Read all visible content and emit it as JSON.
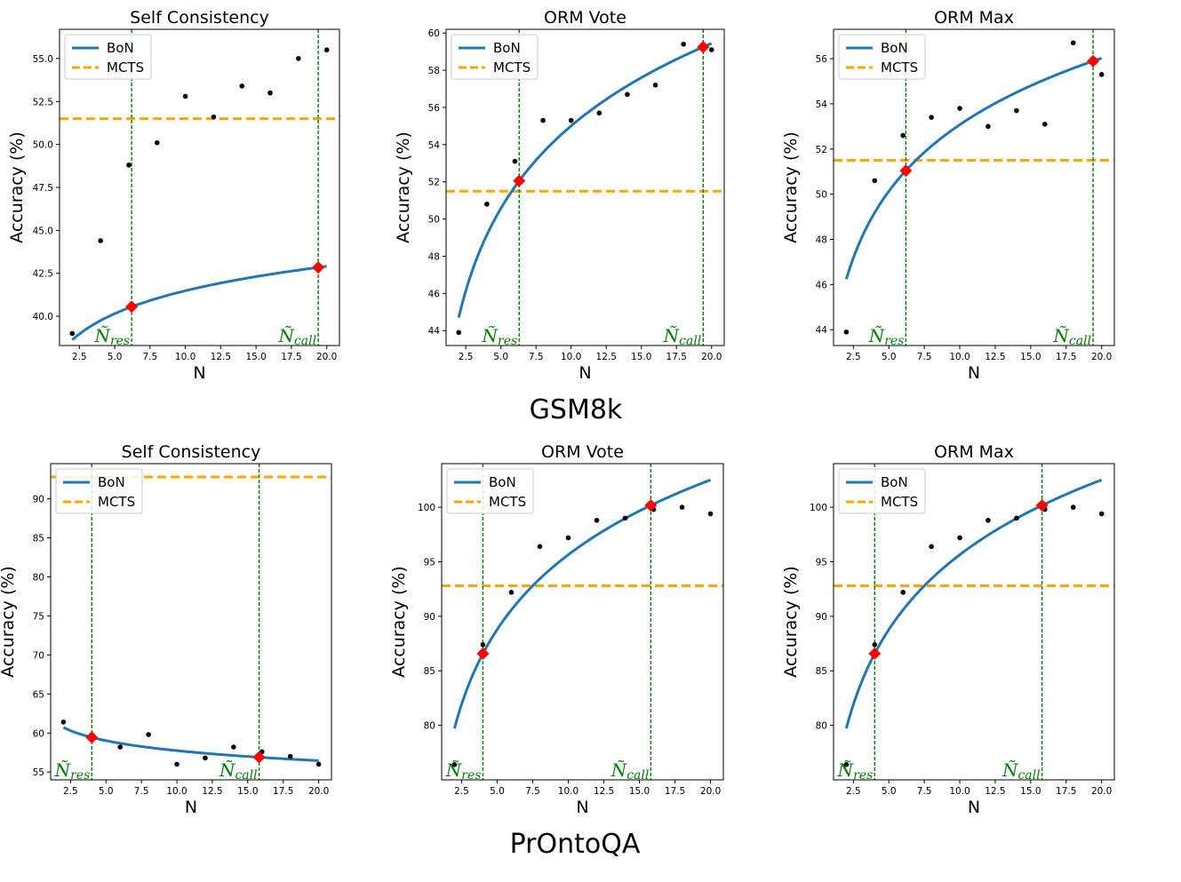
{
  "groups": [
    {
      "label": "GSM8k"
    },
    {
      "label": "PrOntoQA"
    }
  ],
  "legend": {
    "bon": "BoN",
    "mcts": "MCTS"
  },
  "annotations": {
    "n_res": "Ñ",
    "n_res_sub": "res",
    "n_call": "Ñ",
    "n_call_sub": "call"
  },
  "colors": {
    "bon": "#1f77b4",
    "mcts": "#ffa500",
    "vline": "#008000",
    "points": "#000000",
    "marker": "#ff0000"
  },
  "chart_data": [
    {
      "type": "line",
      "group": "GSM8k",
      "title": "Self Consistency",
      "xlabel": "N",
      "ylabel": "Accuracy (%)",
      "xlim": [
        1.1,
        20.9
      ],
      "ylim": [
        38.3,
        56.7
      ],
      "xticks": [
        "2.5",
        "5.0",
        "7.5",
        "10.0",
        "12.5",
        "15.0",
        "17.5",
        "20.0"
      ],
      "yticks": [
        "40.0",
        "42.5",
        "45.0",
        "47.5",
        "50.0",
        "52.5",
        "55.0"
      ],
      "bon_curve": {
        "a": 36.21,
        "b": 2.2,
        "model": "a + b*ln(1+x)"
      },
      "points": [
        [
          2,
          39.0
        ],
        [
          4,
          44.4
        ],
        [
          6,
          48.8
        ],
        [
          8,
          50.1
        ],
        [
          10,
          52.8
        ],
        [
          12,
          51.6
        ],
        [
          14,
          53.4
        ],
        [
          16,
          53.0
        ],
        [
          18,
          55.0
        ],
        [
          20,
          55.5
        ]
      ],
      "mcts": 51.5,
      "n_res": 6.2,
      "n_call": 19.4,
      "legend_position": "upper-left"
    },
    {
      "type": "line",
      "group": "GSM8k",
      "title": "ORM Vote",
      "xlabel": "N",
      "ylabel": "Accuracy (%)",
      "xlim": [
        1.1,
        20.9
      ],
      "ylim": [
        43.2,
        60.2
      ],
      "xticks": [
        "2.5",
        "5.0",
        "7.5",
        "10.0",
        "12.5",
        "15.0",
        "17.5",
        "20.0"
      ],
      "yticks": [
        "44",
        "46",
        "48",
        "50",
        "52",
        "54",
        "56",
        "58",
        "60"
      ],
      "bon_curve": {
        "a": 40.27,
        "b": 6.4,
        "model": "a + b*ln(x)"
      },
      "points": [
        [
          2,
          43.9
        ],
        [
          4,
          50.8
        ],
        [
          6,
          53.1
        ],
        [
          8,
          55.3
        ],
        [
          10,
          55.3
        ],
        [
          12,
          55.7
        ],
        [
          14,
          56.7
        ],
        [
          16,
          57.2
        ],
        [
          18,
          59.4
        ],
        [
          20,
          59.1
        ]
      ],
      "mcts": 51.5,
      "n_res": 6.3,
      "n_call": 19.4,
      "legend_position": "upper-left"
    },
    {
      "type": "line",
      "group": "GSM8k",
      "title": "ORM Max",
      "xlabel": "N",
      "ylabel": "Accuracy (%)",
      "xlim": [
        1.1,
        20.9
      ],
      "ylim": [
        43.3,
        57.3
      ],
      "xticks": [
        "2.5",
        "5.0",
        "7.5",
        "10.0",
        "12.5",
        "15.0",
        "17.5",
        "20.0"
      ],
      "yticks": [
        "44",
        "46",
        "48",
        "50",
        "52",
        "54",
        "56"
      ],
      "bon_curve": {
        "a": 43.29,
        "b": 4.25,
        "model": "a + b*ln(x)"
      },
      "points": [
        [
          2,
          43.9
        ],
        [
          4,
          50.6
        ],
        [
          6,
          52.6
        ],
        [
          8,
          53.4
        ],
        [
          10,
          53.8
        ],
        [
          12,
          53.0
        ],
        [
          14,
          53.7
        ],
        [
          16,
          53.1
        ],
        [
          18,
          56.7
        ],
        [
          20,
          55.3
        ]
      ],
      "mcts": 51.5,
      "n_res": 6.2,
      "n_call": 19.4,
      "legend_position": "upper-left"
    },
    {
      "type": "line",
      "group": "PrOntoQA",
      "title": "Self Consistency",
      "xlabel": "N",
      "ylabel": "Accuracy (%)",
      "xlim": [
        1.1,
        20.9
      ],
      "ylim": [
        54.0,
        94.5
      ],
      "xticks": [
        "2.5",
        "5.0",
        "7.5",
        "10.0",
        "12.5",
        "15.0",
        "17.5",
        "20.0"
      ],
      "yticks": [
        "55",
        "60",
        "65",
        "70",
        "75",
        "80",
        "85",
        "90"
      ],
      "bon_curve": {
        "a": 62.0,
        "b": -1.85,
        "model": "a + b*ln(x)"
      },
      "points": [
        [
          2,
          61.4
        ],
        [
          4,
          59.8
        ],
        [
          6,
          58.2
        ],
        [
          8,
          59.8
        ],
        [
          10,
          56.0
        ],
        [
          12,
          56.8
        ],
        [
          14,
          58.2
        ],
        [
          16,
          57.6
        ],
        [
          18,
          57.0
        ],
        [
          20,
          56.0
        ]
      ],
      "mcts": 92.8,
      "n_res": 4.0,
      "n_call": 15.8,
      "legend_position": "upper-left"
    },
    {
      "type": "line",
      "group": "PrOntoQA",
      "title": "ORM Vote",
      "xlabel": "N",
      "ylabel": "Accuracy (%)",
      "xlim": [
        1.1,
        20.9
      ],
      "ylim": [
        75.0,
        104.0
      ],
      "xticks": [
        "2.5",
        "5.0",
        "7.5",
        "10.0",
        "12.5",
        "15.0",
        "17.5",
        "20.0"
      ],
      "yticks": [
        "80",
        "85",
        "90",
        "95",
        "100"
      ],
      "bon_curve": {
        "a": 72.85,
        "b": 9.9,
        "model": "a + b*ln(x)"
      },
      "points": [
        [
          2,
          76.4
        ],
        [
          4,
          87.4
        ],
        [
          6,
          92.2
        ],
        [
          8,
          96.4
        ],
        [
          10,
          97.2
        ],
        [
          12,
          98.8
        ],
        [
          14,
          99.0
        ],
        [
          16,
          99.8
        ],
        [
          18,
          100.0
        ],
        [
          20,
          99.4
        ]
      ],
      "mcts": 92.8,
      "n_res": 4.0,
      "n_call": 15.8,
      "legend_position": "upper-left"
    },
    {
      "type": "line",
      "group": "PrOntoQA",
      "title": "ORM Max",
      "xlabel": "N",
      "ylabel": "Accuracy (%)",
      "xlim": [
        1.1,
        20.9
      ],
      "ylim": [
        75.0,
        104.0
      ],
      "xticks": [
        "2.5",
        "5.0",
        "7.5",
        "10.0",
        "12.5",
        "15.0",
        "17.5",
        "20.0"
      ],
      "yticks": [
        "80",
        "85",
        "90",
        "95",
        "100"
      ],
      "bon_curve": {
        "a": 72.85,
        "b": 9.9,
        "model": "a + b*ln(x)"
      },
      "points": [
        [
          2,
          76.4
        ],
        [
          4,
          87.4
        ],
        [
          6,
          92.2
        ],
        [
          8,
          96.4
        ],
        [
          10,
          97.2
        ],
        [
          12,
          98.8
        ],
        [
          14,
          99.0
        ],
        [
          16,
          99.8
        ],
        [
          18,
          100.0
        ],
        [
          20,
          99.4
        ]
      ],
      "mcts": 92.8,
      "n_res": 4.0,
      "n_call": 15.8,
      "legend_position": "upper-left"
    }
  ]
}
